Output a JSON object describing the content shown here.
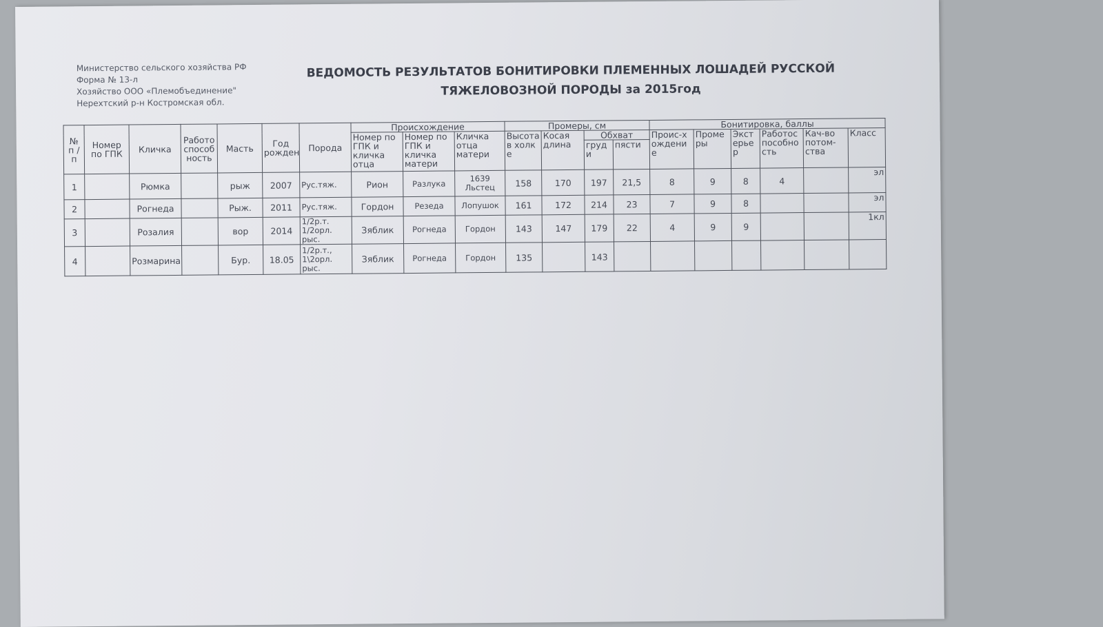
{
  "org": {
    "line1": "Министерство сельского хозяйства РФ",
    "line2": "Форма № 13-л",
    "line3": "Хозяйство  ООО «Племобъединение\"",
    "line4": "Нерехтский р-н Костромская обл."
  },
  "title": {
    "line1": "ВЕДОМОСТЬ РЕЗУЛЬТАТОВ БОНИТИРОВКИ ПЛЕМЕННЫХ ЛОШАДЕЙ РУССКОЙ",
    "line2": "ТЯЖЕЛОВОЗНОЙ ПОРОДЫ за 2015год"
  },
  "table": {
    "groups": {
      "origin": "Происхождение",
      "measures": "Промеры, см",
      "girth": "Обхват",
      "grading": "Бонитировка, баллы"
    },
    "headers": {
      "num": "№ п / п",
      "gpk": "Номер по ГПК",
      "name": "Кличка",
      "work": "Работоспособность",
      "color": "Масть",
      "year": "Год рождения",
      "breed": "Порода",
      "sire": "Номер по ГПК и кличка отца",
      "dam": "Номер по ГПК и кличка матери",
      "damsire": "Кличка отца матери",
      "height": "Высота в холке",
      "length": "Косая длина",
      "chest": "груди",
      "cannon": "пясти",
      "g_origin": "Проис-хождение",
      "g_measures": "Промеры",
      "g_exterior": "Экстерьер",
      "g_work": "Работоспособность",
      "g_progeny": "Кач-во потом-ства",
      "g_class": "Класс"
    },
    "rows": [
      {
        "num": "1",
        "gpk": "",
        "name": "Рюмка",
        "work": "",
        "color": "рыж",
        "year": "2007",
        "breed": "Рус.тяж.",
        "sire": "Рион",
        "dam": "Разлука",
        "damsire": "1639 Льстец",
        "height": "158",
        "length": "170",
        "chest": "197",
        "cannon": "21,5",
        "g_origin": "8",
        "g_measures": "9",
        "g_exterior": "8",
        "g_work": "4",
        "g_progeny": "",
        "g_class": "эл"
      },
      {
        "num": "2",
        "gpk": "",
        "name": "Рогнеда",
        "work": "",
        "color": "Рыж.",
        "year": "2011",
        "breed": "Рус.тяж.",
        "sire": "Гордон",
        "dam": "Резеда",
        "damsire": "Лопушок",
        "height": "161",
        "length": "172",
        "chest": "214",
        "cannon": "23",
        "g_origin": "7",
        "g_measures": "9",
        "g_exterior": "8",
        "g_work": "",
        "g_progeny": "",
        "g_class": "эл"
      },
      {
        "num": "3",
        "gpk": "",
        "name": "Розалия",
        "work": "",
        "color": "вор",
        "year": "2014",
        "breed": "1/2р.т. 1/2орл. рыс.",
        "sire": "Зяблик",
        "dam": "Рогнеда",
        "damsire": "Гордон",
        "height": "143",
        "length": "147",
        "chest": "179",
        "cannon": "22",
        "g_origin": "4",
        "g_measures": "9",
        "g_exterior": "9",
        "g_work": "",
        "g_progeny": "",
        "g_class": "1кл"
      },
      {
        "num": "4",
        "gpk": "",
        "name": "Розмарина",
        "work": "",
        "color": "Бур.",
        "year": "18.05",
        "breed": "1/2р.т., 1\\2орл. рыс.",
        "sire": "Зяблик",
        "dam": "Рогнеда",
        "damsire": "Гордон",
        "height": "135",
        "length": "",
        "chest": "143",
        "cannon": "",
        "g_origin": "",
        "g_measures": "",
        "g_exterior": "",
        "g_work": "",
        "g_progeny": "",
        "g_class": ""
      }
    ]
  }
}
